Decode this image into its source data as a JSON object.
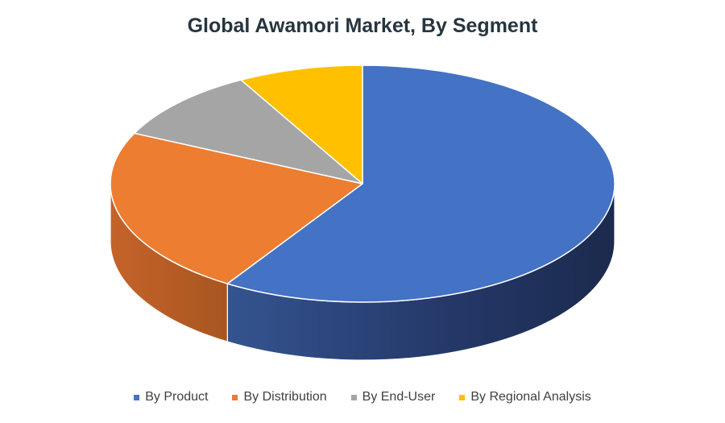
{
  "chart_data": {
    "type": "pie",
    "title": "Global Awamori Market, By Segment",
    "categories": [
      "By Product",
      "By Distribution",
      "By End-User",
      "By Regional Analysis"
    ],
    "values": [
      59,
      23,
      10,
      8
    ],
    "colors": [
      "#4472c4",
      "#ed7d31",
      "#a5a5a5",
      "#ffc000"
    ],
    "style": "3d-pie",
    "legend_position": "bottom"
  }
}
